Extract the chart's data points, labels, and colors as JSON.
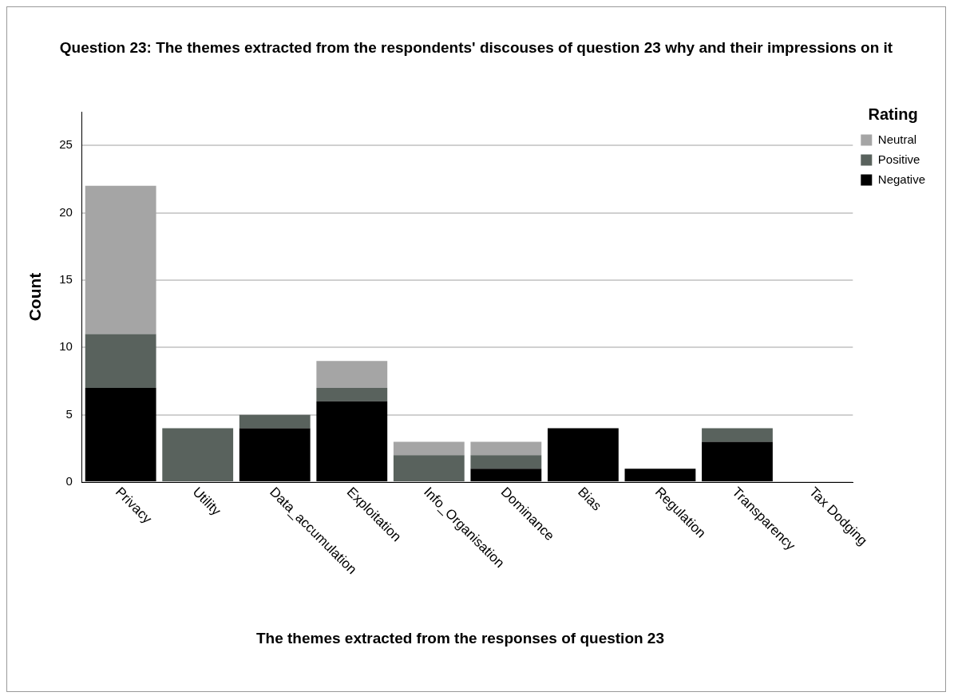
{
  "chart_data": {
    "type": "bar",
    "title": "Question 23: The themes extracted from the respondents' discouses of question 23 why and their impressions on it",
    "xlabel": "The themes extracted from the responses of question 23",
    "ylabel": "Count",
    "legend_title": "Rating",
    "categories": [
      "Privacy",
      "Utility",
      "Data_accumulation",
      "Exploitation",
      "Info_Organisation",
      "Dominance",
      "Bias",
      "Regulation",
      "Transparency",
      "Tax Dodging"
    ],
    "stacked": true,
    "series": [
      {
        "name": "Negative",
        "color": "#000000",
        "values": [
          7,
          0,
          4,
          6,
          0,
          1,
          4,
          1,
          3,
          0
        ]
      },
      {
        "name": "Positive",
        "color": "#59625d",
        "values": [
          4,
          4,
          1,
          1,
          2,
          1,
          0,
          0,
          1,
          0
        ]
      },
      {
        "name": "Neutral",
        "color": "#a5a5a5",
        "values": [
          11,
          0,
          0,
          2,
          1,
          1,
          0,
          0,
          0,
          0
        ]
      }
    ],
    "ylim": [
      0,
      27.5
    ],
    "yticks": [
      0,
      5,
      10,
      15,
      20,
      25
    ],
    "grid": "y",
    "legend": "top right"
  }
}
